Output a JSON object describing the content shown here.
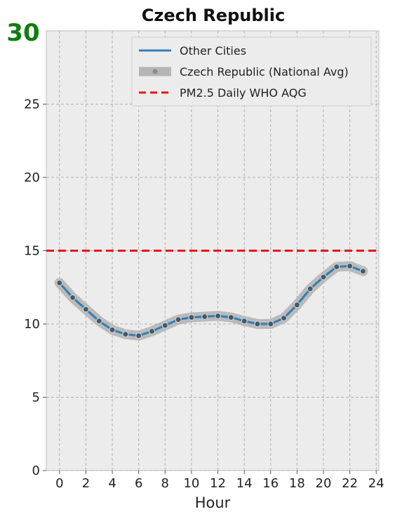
{
  "chart_data": {
    "type": "line",
    "title": "Czech Republic",
    "xlabel": "Hour",
    "ylabel": "",
    "xlim": [
      -1,
      24.2
    ],
    "ylim": [
      0,
      30
    ],
    "xticks": [
      0,
      2,
      4,
      6,
      8,
      10,
      12,
      14,
      16,
      18,
      20,
      22,
      24
    ],
    "yticks": [
      0,
      5,
      10,
      15,
      20,
      25
    ],
    "ytop_label": "30",
    "grid": true,
    "legend_position": "top-right",
    "x": [
      0,
      1,
      2,
      3,
      4,
      5,
      6,
      7,
      8,
      9,
      10,
      11,
      12,
      13,
      14,
      15,
      16,
      17,
      18,
      19,
      20,
      21,
      22,
      23
    ],
    "series": [
      {
        "name": "Other Cities",
        "color": "#2f7fb5",
        "values": [
          12.8,
          11.8,
          11.0,
          10.2,
          9.6,
          9.3,
          9.2,
          9.5,
          9.9,
          10.3,
          10.45,
          10.5,
          10.55,
          10.45,
          10.2,
          10.0,
          10.0,
          10.4,
          11.3,
          12.4,
          13.2,
          13.9,
          13.95,
          13.6
        ]
      },
      {
        "name": "Czech Republic (National Avg)",
        "color": "#b5b5b5",
        "values": [
          12.8,
          11.8,
          11.0,
          10.2,
          9.6,
          9.3,
          9.2,
          9.5,
          9.9,
          10.3,
          10.45,
          10.5,
          10.55,
          10.45,
          10.2,
          10.0,
          10.0,
          10.4,
          11.3,
          12.4,
          13.2,
          13.9,
          13.95,
          13.6
        ]
      }
    ],
    "reference_line": {
      "name": "PM2.5 Daily WHO AQG",
      "value": 15,
      "color": "#e8130c"
    }
  }
}
